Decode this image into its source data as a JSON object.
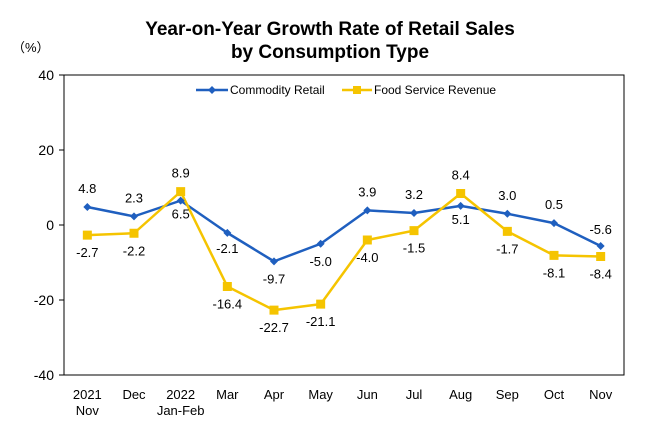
{
  "chart_data": {
    "type": "line",
    "title": "Year-on-Year Growth Rate of Retail Sales",
    "subtitle": "by Consumption Type",
    "unit_label": "（%）",
    "categories": [
      [
        "2021",
        "Nov"
      ],
      [
        "Dec"
      ],
      [
        "2022",
        "Jan-Feb"
      ],
      [
        "Mar"
      ],
      [
        "Apr"
      ],
      [
        "May"
      ],
      [
        "Jun"
      ],
      [
        "Jul"
      ],
      [
        "Aug"
      ],
      [
        "Sep"
      ],
      [
        "Oct"
      ],
      [
        "Nov"
      ]
    ],
    "series": [
      {
        "name": "Commodity Retail",
        "color": "#1f5fbf",
        "marker": "diamond",
        "values": [
          4.8,
          2.3,
          6.5,
          -2.1,
          -9.7,
          -5.0,
          3.9,
          3.2,
          5.1,
          3.0,
          0.5,
          -5.6
        ],
        "labels": [
          "4.8",
          "2.3",
          "6.5",
          "-2.1",
          "-9.7",
          "-5.0",
          "3.9",
          "3.2",
          "5.1",
          "3.0",
          "0.5",
          "-5.6"
        ]
      },
      {
        "name": "Food Service Revenue",
        "color": "#f5c400",
        "marker": "square",
        "values": [
          -2.7,
          -2.2,
          8.9,
          -16.4,
          -22.7,
          -21.1,
          -4.0,
          -1.5,
          8.4,
          -1.7,
          -8.1,
          -8.4
        ],
        "labels": [
          "-2.7",
          "-2.2",
          "8.9",
          "-16.4",
          "-22.7",
          "-21.1",
          "-4.0",
          "-1.5",
          "8.4",
          "-1.7",
          "-8.1",
          "-8.4"
        ]
      }
    ],
    "ylim": [
      -40,
      40
    ],
    "yticks": [
      "40",
      "20",
      "0",
      "-20",
      "-40"
    ],
    "grid": false,
    "legend_position": "top"
  }
}
